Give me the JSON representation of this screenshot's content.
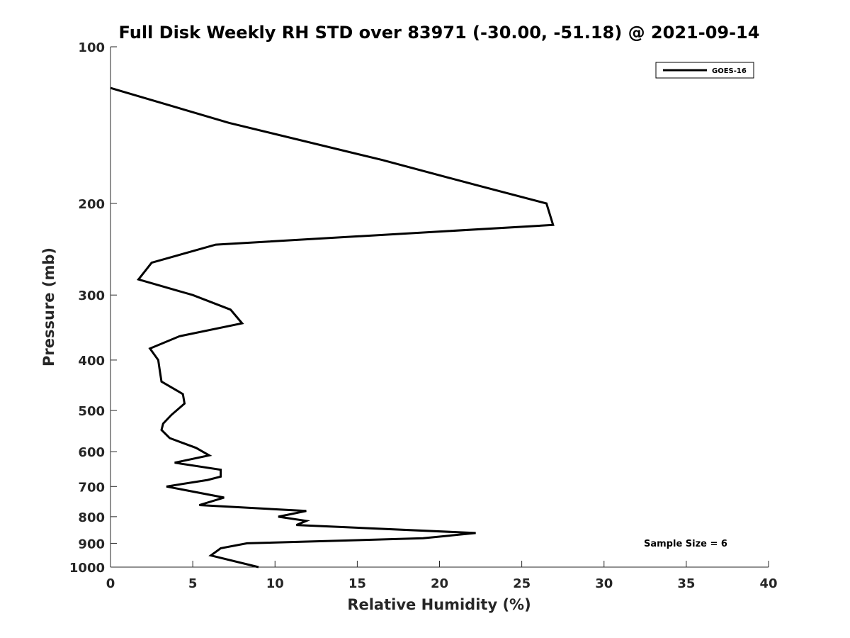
{
  "chart_data": {
    "type": "line",
    "title": "Full Disk Weekly RH STD over 83971 (-30.00, -51.18) @ 2021-09-14",
    "xlabel": "Relative Humidity (%)",
    "ylabel": "Pressure (mb)",
    "xlim": [
      0,
      40
    ],
    "ylim": [
      100,
      1000
    ],
    "y_scale": "log",
    "y_reversed": true,
    "grid": false,
    "legend_position": "top-right",
    "x_ticks": [
      0,
      5,
      10,
      15,
      20,
      25,
      30,
      35,
      40
    ],
    "y_ticks": [
      100,
      200,
      300,
      400,
      500,
      600,
      700,
      800,
      900,
      1000
    ],
    "annotation": "Sample Size = 6",
    "series": [
      {
        "name": "GOES-16",
        "color": "#000000",
        "points": [
          [
            0.0,
            120
          ],
          [
            7.2,
            140
          ],
          [
            16.5,
            165
          ],
          [
            22.4,
            185
          ],
          [
            26.5,
            200
          ],
          [
            26.9,
            220
          ],
          [
            6.4,
            240
          ],
          [
            2.5,
            260
          ],
          [
            1.7,
            280
          ],
          [
            5.0,
            300
          ],
          [
            7.3,
            320
          ],
          [
            8.0,
            340
          ],
          [
            4.2,
            360
          ],
          [
            2.4,
            380
          ],
          [
            2.9,
            400
          ],
          [
            3.0,
            420
          ],
          [
            3.1,
            440
          ],
          [
            4.4,
            465
          ],
          [
            4.5,
            485
          ],
          [
            3.7,
            510
          ],
          [
            3.2,
            530
          ],
          [
            3.1,
            545
          ],
          [
            3.6,
            565
          ],
          [
            5.2,
            590
          ],
          [
            6.0,
            610
          ],
          [
            3.9,
            630
          ],
          [
            6.7,
            650
          ],
          [
            6.7,
            670
          ],
          [
            5.9,
            680
          ],
          [
            3.4,
            700
          ],
          [
            6.9,
            735
          ],
          [
            5.4,
            760
          ],
          [
            11.9,
            780
          ],
          [
            10.2,
            800
          ],
          [
            11.9,
            815
          ],
          [
            11.3,
            830
          ],
          [
            22.2,
            860
          ],
          [
            19.0,
            880
          ],
          [
            8.3,
            900
          ],
          [
            6.7,
            920
          ],
          [
            6.1,
            950
          ],
          [
            9.0,
            1000
          ]
        ]
      }
    ]
  }
}
